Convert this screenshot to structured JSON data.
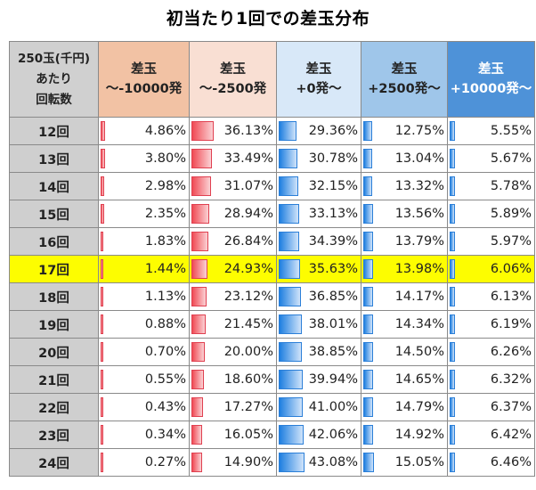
{
  "title": "初当たり1回での差玉分布",
  "corner": [
    "250玉(千円)",
    "あたり",
    "回転数"
  ],
  "headers": [
    {
      "top": "差玉",
      "bottom": "～-10000発",
      "color": "red"
    },
    {
      "top": "差玉",
      "bottom": "～-2500発",
      "color": "red"
    },
    {
      "top": "差玉",
      "bottom": "+0発～",
      "color": "blue"
    },
    {
      "top": "差玉",
      "bottom": "+2500発～",
      "color": "blue"
    },
    {
      "top": "差玉",
      "bottom": "+10000発～",
      "color": "blue"
    }
  ],
  "highlight_row": "17回",
  "rows": [
    {
      "label": "12回",
      "values": [
        "4.86%",
        "36.13%",
        "29.36%",
        "12.75%",
        "5.55%"
      ]
    },
    {
      "label": "13回",
      "values": [
        "3.80%",
        "33.49%",
        "30.78%",
        "13.04%",
        "5.67%"
      ]
    },
    {
      "label": "14回",
      "values": [
        "2.98%",
        "31.07%",
        "32.15%",
        "13.32%",
        "5.78%"
      ]
    },
    {
      "label": "15回",
      "values": [
        "2.35%",
        "28.94%",
        "33.13%",
        "13.56%",
        "5.89%"
      ]
    },
    {
      "label": "16回",
      "values": [
        "1.83%",
        "26.84%",
        "34.39%",
        "13.79%",
        "5.97%"
      ]
    },
    {
      "label": "17回",
      "values": [
        "1.44%",
        "24.93%",
        "35.63%",
        "13.98%",
        "6.06%"
      ]
    },
    {
      "label": "18回",
      "values": [
        "1.13%",
        "23.12%",
        "36.85%",
        "14.17%",
        "6.13%"
      ]
    },
    {
      "label": "19回",
      "values": [
        "0.88%",
        "21.45%",
        "38.01%",
        "14.34%",
        "6.19%"
      ]
    },
    {
      "label": "20回",
      "values": [
        "0.70%",
        "20.00%",
        "38.85%",
        "14.50%",
        "6.26%"
      ]
    },
    {
      "label": "21回",
      "values": [
        "0.55%",
        "18.60%",
        "39.94%",
        "14.65%",
        "6.32%"
      ]
    },
    {
      "label": "22回",
      "values": [
        "0.43%",
        "17.27%",
        "41.00%",
        "14.79%",
        "6.37%"
      ]
    },
    {
      "label": "23回",
      "values": [
        "0.34%",
        "16.05%",
        "42.06%",
        "14.92%",
        "6.42%"
      ]
    },
    {
      "label": "24回",
      "values": [
        "0.27%",
        "14.90%",
        "43.08%",
        "15.05%",
        "6.46%"
      ]
    }
  ]
}
